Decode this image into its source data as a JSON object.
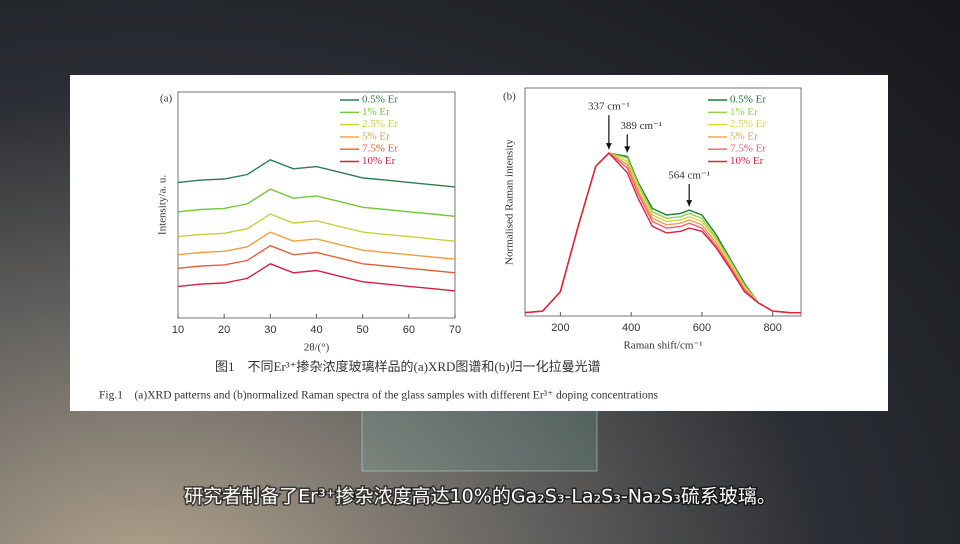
{
  "chart_data": [
    {
      "type": "line",
      "panel_label": "(a)",
      "x_label": "2θ/(°)",
      "y_label": "Intensity/a. u.",
      "x": [
        10,
        15,
        20,
        25,
        30,
        35,
        40,
        45,
        50,
        55,
        60,
        65,
        70
      ],
      "xlim": [
        10,
        70
      ],
      "xticks": [
        10,
        20,
        30,
        40,
        50,
        60,
        70
      ],
      "ylim": [
        0,
        100
      ],
      "legend": "upper right",
      "series": [
        {
          "name": "0.5% Er",
          "color": "#2e7d4f",
          "values": [
            60,
            61,
            61.5,
            63.5,
            70,
            66,
            67,
            64.5,
            62,
            61,
            60,
            59,
            58
          ]
        },
        {
          "name": "1% Er",
          "color": "#74c83a",
          "values": [
            47,
            48,
            48.5,
            50.5,
            57,
            53,
            54,
            51.5,
            49,
            48,
            47,
            46,
            45
          ]
        },
        {
          "name": "2.5% Er",
          "color": "#c9cf3a",
          "values": [
            36,
            37,
            37.5,
            39.5,
            46,
            42,
            43,
            40.5,
            38,
            37,
            36,
            35,
            34
          ]
        },
        {
          "name": "5% Er",
          "color": "#f0a040",
          "values": [
            28,
            29,
            29.5,
            31.5,
            38,
            34,
            35,
            32.5,
            30,
            29,
            28,
            27,
            26
          ]
        },
        {
          "name": "7.5% Er",
          "color": "#e8603a",
          "values": [
            22,
            23,
            23.5,
            25.5,
            32,
            28,
            29,
            26.5,
            24,
            23,
            22,
            21,
            20
          ]
        },
        {
          "name": "10% Er",
          "color": "#d42040",
          "values": [
            14,
            15,
            15.5,
            17.5,
            24,
            20,
            21,
            18.5,
            16,
            15,
            14,
            13,
            12
          ]
        }
      ]
    },
    {
      "type": "line",
      "panel_label": "(b)",
      "x_label": "Raman shift/cm⁻¹",
      "y_label": "Normalised Raman intensity",
      "x": [
        100,
        150,
        200,
        250,
        300,
        337,
        389,
        420,
        460,
        500,
        540,
        564,
        600,
        640,
        680,
        720,
        760,
        800,
        850,
        880
      ],
      "xlim": [
        100,
        880
      ],
      "xticks": [
        200,
        400,
        600,
        800
      ],
      "ylim": [
        0,
        1.4
      ],
      "legend": "upper right",
      "series": [
        {
          "name": "0.5% Er",
          "color": "#1e7a3a",
          "values": [
            0.02,
            0.03,
            0.15,
            0.55,
            0.92,
            1.0,
            0.98,
            0.82,
            0.66,
            0.62,
            0.63,
            0.65,
            0.62,
            0.5,
            0.35,
            0.2,
            0.08,
            0.03,
            0.02,
            0.02
          ]
        },
        {
          "name": "1% Er",
          "color": "#8fd24a",
          "values": [
            0.02,
            0.03,
            0.15,
            0.55,
            0.92,
            1.0,
            0.97,
            0.81,
            0.64,
            0.6,
            0.61,
            0.63,
            0.6,
            0.48,
            0.34,
            0.19,
            0.08,
            0.03,
            0.02,
            0.02
          ]
        },
        {
          "name": "2.5% Er",
          "color": "#d8d840",
          "values": [
            0.02,
            0.03,
            0.15,
            0.55,
            0.92,
            1.0,
            0.95,
            0.79,
            0.62,
            0.58,
            0.59,
            0.61,
            0.58,
            0.47,
            0.33,
            0.18,
            0.08,
            0.03,
            0.02,
            0.02
          ]
        },
        {
          "name": "5% Er",
          "color": "#f0a050",
          "values": [
            0.02,
            0.03,
            0.15,
            0.55,
            0.92,
            1.0,
            0.93,
            0.77,
            0.6,
            0.56,
            0.57,
            0.59,
            0.56,
            0.45,
            0.31,
            0.17,
            0.08,
            0.03,
            0.02,
            0.02
          ]
        },
        {
          "name": "7.5% Er",
          "color": "#f06070",
          "values": [
            0.02,
            0.03,
            0.15,
            0.55,
            0.92,
            1.0,
            0.91,
            0.75,
            0.58,
            0.54,
            0.55,
            0.57,
            0.54,
            0.43,
            0.3,
            0.16,
            0.08,
            0.03,
            0.02,
            0.02
          ]
        },
        {
          "name": "10% Er",
          "color": "#e0203c",
          "values": [
            0.02,
            0.03,
            0.15,
            0.55,
            0.92,
            1.0,
            0.88,
            0.72,
            0.55,
            0.51,
            0.52,
            0.54,
            0.52,
            0.42,
            0.29,
            0.15,
            0.08,
            0.03,
            0.02,
            0.02
          ]
        }
      ],
      "annotations": [
        {
          "text": "337 cm⁻¹",
          "x": 337,
          "y": 1.0
        },
        {
          "text": "389 cm⁻¹",
          "x": 389,
          "y": 0.98
        },
        {
          "text": "564 cm⁻¹",
          "x": 564,
          "y": 0.65
        }
      ]
    }
  ],
  "caption": {
    "zh": "图1　不同Er³⁺掺杂浓度玻璃样品的(a)XRD图谱和(b)归一化拉曼光谱",
    "en": "Fig.1　(a)XRD patterns and (b)normalized Raman spectra of the glass samples with different Er³⁺ doping concentrations"
  },
  "subtitle": "研究者制备了Er³⁺掺杂浓度高达10%的Ga₂S₃-La₂S₃-Na₂S₃硫系玻璃。"
}
